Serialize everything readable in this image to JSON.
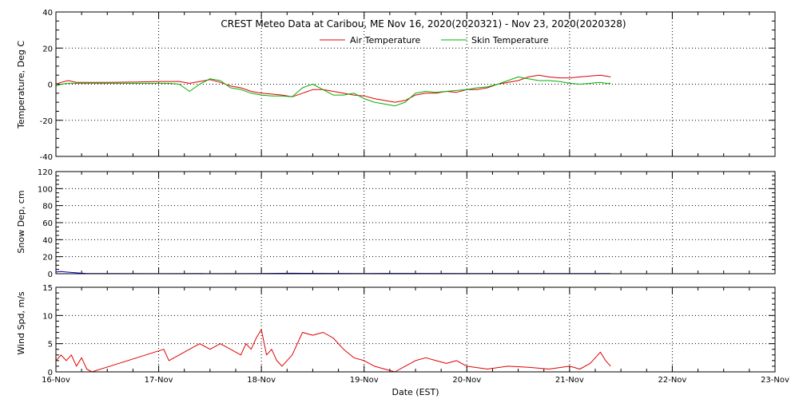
{
  "chart_data": [
    {
      "type": "line",
      "panel": "temperature",
      "title": "CREST Meteo Data at Caribou, ME   Nov 16, 2020(2020321) - Nov 23, 2020(2020328)",
      "ylabel": "Temperature, Deg C",
      "ylim": [
        -40,
        40
      ],
      "yticks": [
        "-40",
        "-20",
        "0",
        "20",
        "40"
      ],
      "xlim": [
        0,
        7
      ],
      "grid": true,
      "legend_position": "top-center",
      "series": [
        {
          "name": "Air Temperature",
          "color": "#e00000",
          "x": [
            0,
            0.05,
            0.12,
            0.2,
            0.3,
            0.5,
            0.8,
            1.0,
            1.1,
            1.2,
            1.3,
            1.4,
            1.5,
            1.6,
            1.7,
            1.8,
            1.9,
            2.0,
            2.1,
            2.2,
            2.3,
            2.4,
            2.5,
            2.6,
            2.7,
            2.8,
            2.9,
            3.0,
            3.1,
            3.2,
            3.3,
            3.4,
            3.5,
            3.6,
            3.7,
            3.8,
            3.9,
            4.0,
            4.1,
            4.2,
            4.3,
            4.4,
            4.5,
            4.6,
            4.7,
            4.8,
            4.9,
            5.0,
            5.1,
            5.2,
            5.3,
            5.35,
            5.4
          ],
          "y": [
            0,
            1,
            2,
            1,
            1,
            1,
            1.2,
            1.5,
            1.5,
            1.5,
            0.5,
            1.5,
            2.5,
            1,
            -1,
            -2,
            -4,
            -5,
            -5.5,
            -6,
            -7,
            -5,
            -3,
            -3,
            -4,
            -5,
            -6,
            -6.5,
            -8,
            -9,
            -10,
            -9,
            -6,
            -5,
            -5,
            -4,
            -4.5,
            -3,
            -3,
            -2,
            0,
            1,
            2,
            4,
            5,
            4,
            3.5,
            3.5,
            4,
            4.5,
            5,
            4.5,
            4
          ]
        },
        {
          "name": "Skin Temperature",
          "color": "#00b000",
          "x": [
            0,
            0.05,
            0.12,
            0.2,
            0.3,
            0.5,
            0.8,
            1.0,
            1.1,
            1.2,
            1.3,
            1.4,
            1.5,
            1.6,
            1.7,
            1.8,
            1.9,
            2.0,
            2.1,
            2.2,
            2.3,
            2.4,
            2.5,
            2.6,
            2.7,
            2.8,
            2.9,
            3.0,
            3.1,
            3.2,
            3.3,
            3.4,
            3.5,
            3.6,
            3.7,
            3.8,
            3.9,
            4.0,
            4.1,
            4.2,
            4.3,
            4.4,
            4.5,
            4.6,
            4.7,
            4.8,
            4.9,
            5.0,
            5.1,
            5.2,
            5.3,
            5.35,
            5.4
          ],
          "y": [
            -1,
            0,
            0.5,
            0.5,
            0.5,
            0.5,
            0.5,
            0.5,
            0.5,
            0,
            -4,
            0,
            3,
            2,
            -2,
            -3,
            -5,
            -6,
            -6.5,
            -6.5,
            -7,
            -2,
            0,
            -3,
            -6,
            -6,
            -5,
            -8,
            -10,
            -11,
            -12,
            -10,
            -5,
            -4,
            -4.5,
            -4,
            -3.5,
            -3,
            -2,
            -1.5,
            0,
            2,
            4,
            3,
            2,
            2,
            1.5,
            0.5,
            0,
            0.5,
            1,
            0.5,
            0.5
          ]
        }
      ]
    },
    {
      "type": "line",
      "panel": "snow",
      "ylabel": "Snow Dep, cm",
      "ylim": [
        0,
        120
      ],
      "yticks": [
        "0",
        "20",
        "40",
        "60",
        "80",
        "100",
        "120"
      ],
      "xlim": [
        0,
        7
      ],
      "grid": true,
      "series": [
        {
          "color": "#0000c0",
          "x": [
            0,
            0.05,
            0.1,
            0.15,
            0.2,
            0.3,
            1.0,
            2.0,
            2.3,
            3.0,
            3.2,
            4.0,
            4.5,
            5.0,
            5.4
          ],
          "y": [
            2,
            2.5,
            2,
            1.5,
            1,
            0.3,
            0.1,
            0.3,
            0.6,
            0.2,
            0.4,
            0.2,
            0.3,
            0.2,
            0.2
          ]
        }
      ]
    },
    {
      "type": "line",
      "panel": "wind",
      "ylabel": "Wind Spd, m/s",
      "xlabel": "Date (EST)",
      "ylim": [
        0,
        15
      ],
      "yticks": [
        "0",
        "5",
        "10",
        "15"
      ],
      "xlim": [
        0,
        7
      ],
      "xticks": [
        "16-Nov",
        "17-Nov",
        "18-Nov",
        "19-Nov",
        "20-Nov",
        "21-Nov",
        "22-Nov",
        "23-Nov"
      ],
      "grid": true,
      "series": [
        {
          "color": "#e00000",
          "x": [
            0,
            0.05,
            0.1,
            0.15,
            0.2,
            0.25,
            0.3,
            0.35,
            1.05,
            1.1,
            1.2,
            1.3,
            1.4,
            1.5,
            1.6,
            1.7,
            1.8,
            1.85,
            1.9,
            1.95,
            2.0,
            2.05,
            2.1,
            2.15,
            2.2,
            2.3,
            2.4,
            2.5,
            2.6,
            2.7,
            2.8,
            2.9,
            3.0,
            3.1,
            3.2,
            3.3,
            3.4,
            3.5,
            3.6,
            3.7,
            3.8,
            3.9,
            4.0,
            4.2,
            4.4,
            4.6,
            4.8,
            5.0,
            5.1,
            5.2,
            5.3,
            5.35,
            5.4
          ],
          "y": [
            2,
            3,
            2,
            3,
            1,
            2.5,
            0.5,
            0,
            4,
            2,
            3,
            4,
            5,
            4,
            5,
            4,
            3,
            5,
            4,
            6,
            7.5,
            3,
            4,
            2,
            1,
            3,
            7,
            6.5,
            7,
            6,
            4,
            2.5,
            2,
            1,
            0.5,
            0,
            1,
            2,
            2.5,
            2,
            1.5,
            2,
            1,
            0.5,
            1,
            0.8,
            0.5,
            1,
            0.5,
            1.5,
            3.5,
            2,
            1
          ]
        }
      ]
    }
  ]
}
